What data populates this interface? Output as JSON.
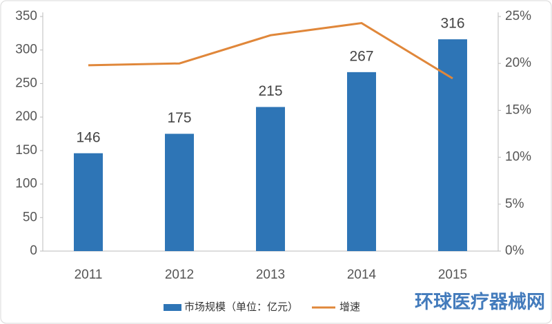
{
  "chart_data": {
    "type": "bar",
    "categories": [
      "2011",
      "2012",
      "2013",
      "2014",
      "2015"
    ],
    "series": [
      {
        "name": "市场规模（单位：亿元）",
        "color": "#2e75b6",
        "values": [
          146,
          175,
          215,
          267,
          316
        ]
      },
      {
        "name": "增速",
        "color": "#e0873a",
        "type": "line",
        "axis": "y2",
        "values": [
          19.8,
          20.0,
          23.0,
          24.3,
          18.4
        ]
      }
    ],
    "ylim": [
      0,
      350
    ],
    "yticks": [
      0,
      50,
      100,
      150,
      200,
      250,
      300,
      350
    ],
    "y2lim": [
      0,
      25
    ],
    "y2ticks": [
      {
        "value": 0,
        "label": "0%"
      },
      {
        "value": 5,
        "label": "5%"
      },
      {
        "value": 10,
        "label": "10%"
      },
      {
        "value": 15,
        "label": "15%"
      },
      {
        "value": 20,
        "label": "20%"
      },
      {
        "value": 25,
        "label": "25%"
      }
    ],
    "grid": false,
    "legend": "bottom",
    "watermark": "环球医疗器械网"
  }
}
